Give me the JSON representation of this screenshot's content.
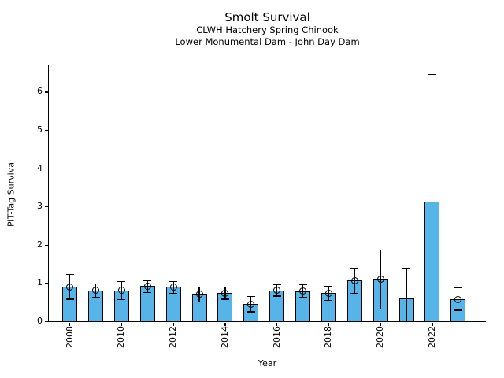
{
  "chart_data": {
    "type": "bar",
    "title": "Smolt Survival",
    "subtitle1": "CLWH Hatchery Spring Chinook",
    "subtitle2": "Lower Monumental Dam - John Day Dam",
    "xlabel": "Year",
    "ylabel": "PIT-Tag Survival",
    "ylim": [
      0,
      6.7
    ],
    "yticks": [
      0,
      1,
      2,
      3,
      4,
      5,
      6
    ],
    "xticks": [
      2008,
      2010,
      2012,
      2014,
      2016,
      2018,
      2020,
      2022
    ],
    "x_tick_rotation": 90,
    "grid": false,
    "legend": "none",
    "bar_color": "#56B4E9",
    "bar_edge_color": "#000000",
    "error_bar_color": "#000000",
    "series": [
      {
        "year": 2008,
        "value": 0.9,
        "err_lo": 0.59,
        "err_hi": 1.23,
        "marker": true
      },
      {
        "year": 2009,
        "value": 0.81,
        "err_lo": 0.64,
        "err_hi": 0.99,
        "marker": true
      },
      {
        "year": 2010,
        "value": 0.81,
        "err_lo": 0.58,
        "err_hi": 1.05,
        "marker": true
      },
      {
        "year": 2011,
        "value": 0.92,
        "err_lo": 0.77,
        "err_hi": 1.07,
        "marker": true
      },
      {
        "year": 2012,
        "value": 0.9,
        "err_lo": 0.75,
        "err_hi": 1.05,
        "marker": true
      },
      {
        "year": 2013,
        "value": 0.71,
        "err_lo": 0.52,
        "err_hi": 0.9,
        "marker": true
      },
      {
        "year": 2014,
        "value": 0.74,
        "err_lo": 0.59,
        "err_hi": 0.9,
        "marker": true
      },
      {
        "year": 2015,
        "value": 0.45,
        "err_lo": 0.26,
        "err_hi": 0.66,
        "marker": true
      },
      {
        "year": 2016,
        "value": 0.81,
        "err_lo": 0.67,
        "err_hi": 0.97,
        "marker": true
      },
      {
        "year": 2017,
        "value": 0.79,
        "err_lo": 0.63,
        "err_hi": 0.98,
        "marker": true
      },
      {
        "year": 2018,
        "value": 0.74,
        "err_lo": 0.56,
        "err_hi": 0.92,
        "marker": true
      },
      {
        "year": 2019,
        "value": 1.06,
        "err_lo": 0.74,
        "err_hi": 1.39,
        "marker": true
      },
      {
        "year": 2020,
        "value": 1.11,
        "err_lo": 0.33,
        "err_hi": 1.88,
        "marker": true
      },
      {
        "year": 2021,
        "value": 0.59,
        "err_lo": 0.02,
        "err_hi": 1.39,
        "marker": false
      },
      {
        "year": 2022,
        "value": 3.12,
        "err_lo": 0.02,
        "err_hi": 6.47,
        "marker": false
      },
      {
        "year": 2023,
        "value": 0.57,
        "err_lo": 0.3,
        "err_hi": 0.88,
        "marker": true
      }
    ]
  }
}
